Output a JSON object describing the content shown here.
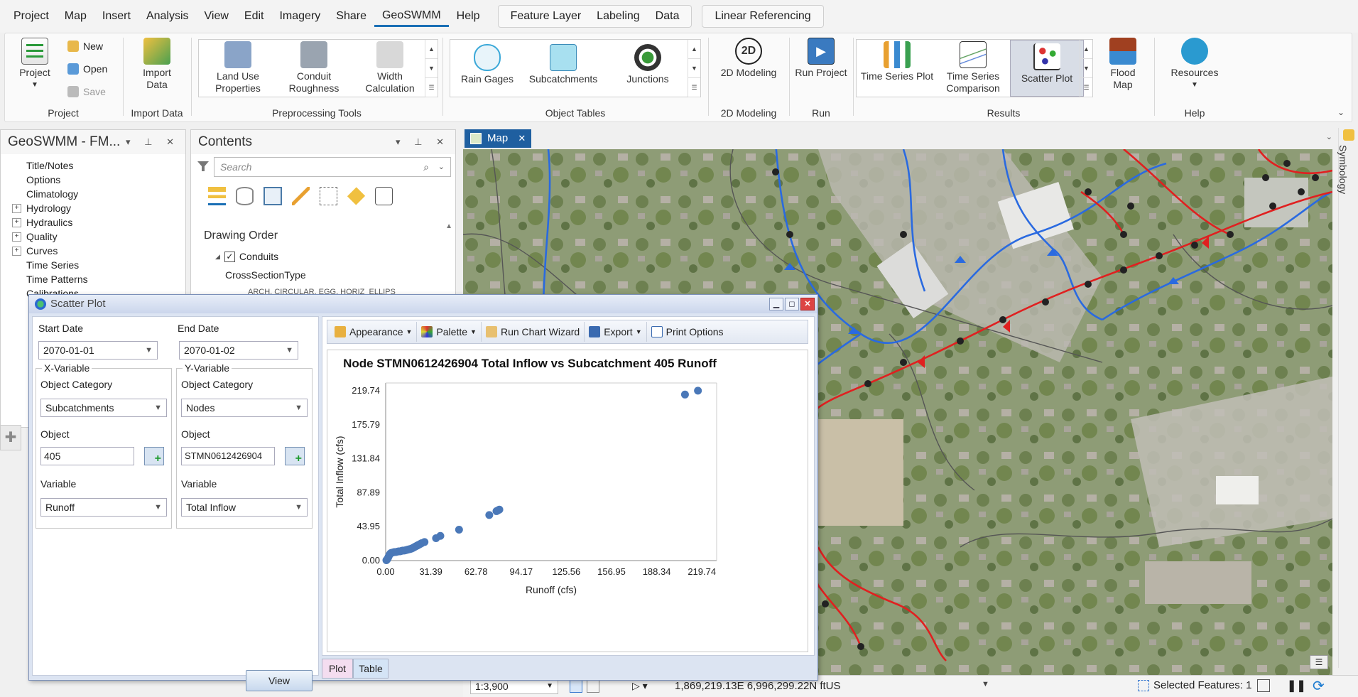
{
  "menu": {
    "items": [
      "Project",
      "Map",
      "Insert",
      "Analysis",
      "View",
      "Edit",
      "Imagery",
      "Share",
      "GeoSWMM",
      "Help"
    ],
    "active": "GeoSWMM",
    "context_items": [
      "Feature Layer",
      "Labeling",
      "Data"
    ],
    "linear_ref": "Linear Referencing"
  },
  "ribbon": {
    "project": {
      "title": "Project",
      "project_btn": "Project",
      "new": "New",
      "open": "Open",
      "save": "Save"
    },
    "import": {
      "title": "Import Data",
      "btn": "Import Data"
    },
    "preprocessing": {
      "title": "Preprocessing Tools",
      "land_use": "Land Use Properties",
      "conduit": "Conduit Roughness",
      "width": "Width Calculation"
    },
    "object_tables": {
      "title": "Object Tables",
      "rain": "Rain Gages",
      "subcatch": "Subcatchments",
      "junctions": "Junctions"
    },
    "modeling": {
      "title": "2D Modeling",
      "btn": "2D Modeling"
    },
    "run": {
      "title": "Run",
      "btn": "Run Project"
    },
    "results": {
      "title": "Results",
      "ts_plot": "Time Series Plot",
      "ts_comp": "Time Series Comparison",
      "scatter": "Scatter Plot",
      "flood": "Flood Map"
    },
    "help": {
      "title": "Help",
      "resources": "Resources"
    }
  },
  "left_panel": {
    "title": "GeoSWMM - FM...",
    "items": [
      {
        "label": "Title/Notes",
        "exp": false
      },
      {
        "label": "Options",
        "exp": false
      },
      {
        "label": "Climatology",
        "exp": false
      },
      {
        "label": "Hydrology",
        "exp": true
      },
      {
        "label": "Hydraulics",
        "exp": true
      },
      {
        "label": "Quality",
        "exp": true
      },
      {
        "label": "Curves",
        "exp": true
      },
      {
        "label": "Time Series",
        "exp": false
      },
      {
        "label": "Time Patterns",
        "exp": false
      },
      {
        "label": "Calibrations",
        "exp": false
      }
    ]
  },
  "contents": {
    "title": "Contents",
    "search_placeholder": "Search",
    "drawing_order": "Drawing Order",
    "layer": "Conduits",
    "field": "CrossSectionType",
    "cut_text": "ARCH, CIRCULAR, EGG, HORIZ_ELLIPS"
  },
  "map": {
    "tab": "Map",
    "symbology": "Symbology",
    "scale": "1:3,900",
    "coords": "1,869,219.13E 6,996,299.22N ftUS",
    "selected": "Selected Features: 1"
  },
  "scatter_window": {
    "title": "Scatter Plot",
    "start_date_label": "Start Date",
    "start_date": "2070-01-01",
    "end_date_label": "End Date",
    "end_date": "2070-01-02",
    "x": {
      "legend": "X-Variable",
      "cat_label": "Object Category",
      "category": "Subcatchments",
      "obj_label": "Object",
      "object": "405",
      "var_label": "Variable",
      "variable": "Runoff"
    },
    "y": {
      "legend": "Y-Variable",
      "cat_label": "Object Category",
      "category": "Nodes",
      "obj_label": "Object",
      "object": "STMN0612426904",
      "var_label": "Variable",
      "variable": "Total Inflow"
    },
    "view_btn": "View",
    "toolbar": {
      "appearance": "Appearance",
      "palette": "Palette",
      "wizard": "Run Chart Wizard",
      "export": "Export",
      "print": "Print Options"
    },
    "tabs": {
      "plot": "Plot",
      "table": "Table"
    }
  },
  "chart_data": {
    "type": "scatter",
    "title": "Node STMN0612426904 Total Inflow vs Subcatchment 405 Runoff",
    "xlabel": "Runoff (cfs)",
    "ylabel": "Total Inflow (cfs)",
    "xlim": [
      0,
      230
    ],
    "ylim": [
      0,
      230
    ],
    "xticks": [
      "0.00",
      "31.39",
      "62.78",
      "94.17",
      "125.56",
      "156.95",
      "188.34",
      "219.74"
    ],
    "yticks": [
      "0.00",
      "43.95",
      "87.89",
      "131.84",
      "175.79",
      "219.74"
    ],
    "color": "#4a78b8",
    "points": [
      [
        0.5,
        0.5
      ],
      [
        1,
        1.5
      ],
      [
        1.5,
        3
      ],
      [
        2,
        5
      ],
      [
        2.5,
        7
      ],
      [
        3,
        8.5
      ],
      [
        3.5,
        9.5
      ],
      [
        4,
        10
      ],
      [
        5,
        10.5
      ],
      [
        6,
        11
      ],
      [
        7,
        11
      ],
      [
        8,
        11.5
      ],
      [
        9,
        12
      ],
      [
        10,
        12
      ],
      [
        11,
        12.5
      ],
      [
        12,
        13
      ],
      [
        13,
        13
      ],
      [
        14,
        13.5
      ],
      [
        15,
        14
      ],
      [
        16,
        14.5
      ],
      [
        17,
        15
      ],
      [
        18,
        15.5
      ],
      [
        19,
        16.5
      ],
      [
        20,
        17.5
      ],
      [
        21,
        18.5
      ],
      [
        22,
        19.5
      ],
      [
        23,
        20.5
      ],
      [
        24,
        21.5
      ],
      [
        25,
        22.5
      ],
      [
        27,
        24
      ],
      [
        35,
        29
      ],
      [
        38,
        32
      ],
      [
        51,
        40
      ],
      [
        72,
        59
      ],
      [
        77,
        64
      ],
      [
        78,
        65
      ],
      [
        79,
        66
      ],
      [
        208,
        215
      ],
      [
        217,
        220
      ]
    ]
  }
}
